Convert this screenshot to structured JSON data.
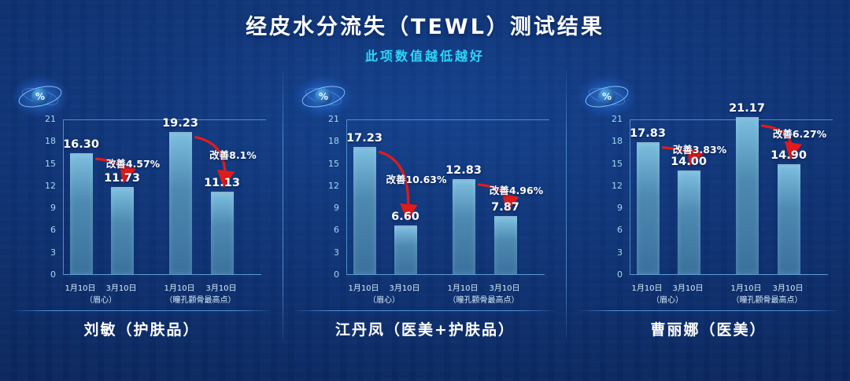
{
  "header": {
    "title": "经皮水分流失（TEWL）测试结果",
    "subtitle": "此项数值越低越好"
  },
  "icons": {
    "percent_badge": "%"
  },
  "colors": {
    "background": "#0e2f6d",
    "accent_cyan": "#2fd5f8",
    "bar_top": "#7cbede",
    "bar_bottom": "#3a719c",
    "axis": "#4e8ec9",
    "arrow_red": "#e01b1b",
    "text_white": "#ffffff"
  },
  "chart_data": [
    {
      "type": "bar",
      "title": "刘敏（护肤品）",
      "ylim": [
        0,
        21
      ],
      "yticks": [
        0,
        3,
        6,
        9,
        12,
        15,
        18,
        21
      ],
      "grid": "top line at max tick, left and bottom axis lines",
      "legend_position": "none",
      "groups": [
        {
          "location": "（眉心）",
          "categories": [
            "1月10日",
            "3月10日"
          ],
          "values": [
            16.3,
            11.73
          ],
          "display_values": [
            "16.30",
            "11.73"
          ],
          "improvement_label": "改善4.57%"
        },
        {
          "location": "（瞳孔颧骨最高点）",
          "categories": [
            "1月10日",
            "3月10日"
          ],
          "values": [
            19.23,
            11.13
          ],
          "display_values": [
            "19.23",
            "11.13"
          ],
          "improvement_label": "改善8.1%"
        }
      ]
    },
    {
      "type": "bar",
      "title": "江丹凤（医美+护肤品）",
      "ylim": [
        0,
        21
      ],
      "yticks": [
        0,
        3,
        6,
        9,
        12,
        15,
        18,
        21
      ],
      "grid": "top line at max tick, left and bottom axis lines",
      "legend_position": "none",
      "groups": [
        {
          "location": "（眉心）",
          "categories": [
            "1月10日",
            "3月10日"
          ],
          "values": [
            17.23,
            6.6
          ],
          "display_values": [
            "17.23",
            "6.60"
          ],
          "improvement_label": "改善10.63%"
        },
        {
          "location": "（瞳孔颧骨最高点）",
          "categories": [
            "1月10日",
            "3月10日"
          ],
          "values": [
            12.83,
            7.87
          ],
          "display_values": [
            "12.83",
            "7.87"
          ],
          "improvement_label": "改善4.96%"
        }
      ]
    },
    {
      "type": "bar",
      "title": "曹丽娜（医美）",
      "ylim": [
        0,
        21
      ],
      "yticks": [
        0,
        3,
        6,
        9,
        12,
        15,
        18,
        21
      ],
      "grid": "top line at max tick, left and bottom axis lines",
      "legend_position": "none",
      "groups": [
        {
          "location": "（眉心）",
          "categories": [
            "1月10日",
            "3月10日"
          ],
          "values": [
            17.83,
            14.0
          ],
          "display_values": [
            "17.83",
            "14.00"
          ],
          "improvement_label": "改善3.83%"
        },
        {
          "location": "（瞳孔颧骨最高点）",
          "categories": [
            "1月10日",
            "3月10日"
          ],
          "values": [
            21.17,
            14.9
          ],
          "display_values": [
            "21.17",
            "14.90"
          ],
          "improvement_label": "改善6.27%"
        }
      ]
    }
  ]
}
